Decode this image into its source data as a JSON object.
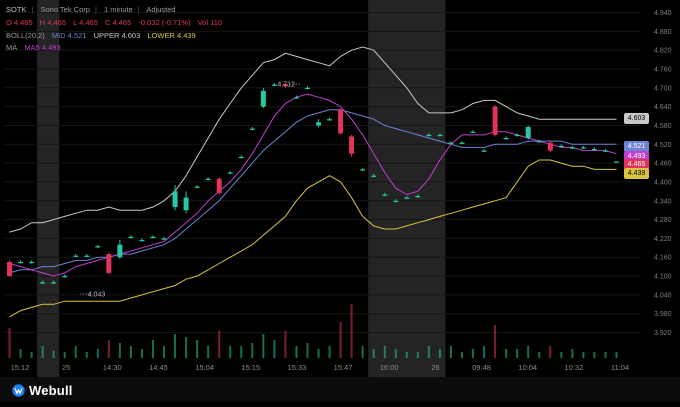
{
  "header": {
    "ticker": "SOTK",
    "company": "Sono Tek Corp",
    "interval": "1 minute",
    "adjustment": "Adjusted",
    "ohlc": {
      "open": "O 4.465",
      "high": "H 4.465",
      "low": "L 4.465",
      "close": "C 4.465",
      "change": "-0.032 (-0.71%)",
      "volume": "Vol 110"
    },
    "boll": {
      "label": "BOLL(20,2)",
      "mid": "MID 4.521",
      "upper": "UPPER 4.603",
      "lower": "LOWER 4.439"
    },
    "ma": {
      "label": "MA",
      "ma5": "MA5 4.493"
    }
  },
  "price_tags": {
    "upper": "4.603",
    "mid": "4.521",
    "ma5": "4.493",
    "close": "4.465",
    "lower": "4.439"
  },
  "colors": {
    "up": "#26c9a4",
    "down": "#e1345a",
    "upper_band": "#c8c8c8",
    "mid_band": "#6d83d6",
    "lower_band": "#d9c53f",
    "ma5": "#c03ed0",
    "session_shade": "#2a2a2a",
    "background": "#000000"
  },
  "footer": {
    "brand": "Webull"
  },
  "chart_data": {
    "type": "candlestick",
    "x_tick_labels": [
      "15:12",
      "25",
      "14:30",
      "14:45",
      "15:04",
      "15:15",
      "15:33",
      "15:47",
      "16:00",
      "26",
      "09:48",
      "10:04",
      "10:32",
      "11:04"
    ],
    "y_ticks": [
      3.92,
      3.98,
      4.04,
      4.1,
      4.16,
      4.22,
      4.28,
      4.34,
      4.4,
      4.46,
      4.52,
      4.58,
      4.64,
      4.7,
      4.76,
      4.82,
      4.88,
      4.94
    ],
    "ylim": [
      3.893,
      4.948
    ],
    "annotations": [
      {
        "text": "4.712",
        "price": 4.712,
        "bar": 25
      },
      {
        "text": "4.043",
        "price": 4.043,
        "bar": 6
      }
    ],
    "shaded_sessions_bars": [
      [
        3,
        4
      ],
      [
        33,
        39
      ]
    ],
    "candles": [
      {
        "o": 4.145,
        "h": 4.15,
        "l": 4.098,
        "c": 4.1,
        "v": 0.5
      },
      {
        "o": 4.145,
        "h": 4.15,
        "l": 4.14,
        "c": 4.145,
        "v": 0.15
      },
      {
        "o": 4.145,
        "h": 4.15,
        "l": 4.14,
        "c": 4.145,
        "v": 0.1
      },
      {
        "o": 4.08,
        "h": 4.085,
        "l": 4.075,
        "c": 4.08,
        "v": 0.2
      },
      {
        "o": 4.08,
        "h": 4.085,
        "l": 4.075,
        "c": 4.08,
        "v": 0.12
      },
      {
        "o": 4.1,
        "h": 4.105,
        "l": 4.095,
        "c": 4.1,
        "v": 0.1
      },
      {
        "o": 4.165,
        "h": 4.17,
        "l": 4.16,
        "c": 4.165,
        "v": 0.2
      },
      {
        "o": 4.165,
        "h": 4.17,
        "l": 4.16,
        "c": 4.165,
        "v": 0.1
      },
      {
        "o": 4.195,
        "h": 4.2,
        "l": 4.19,
        "c": 4.195,
        "v": 0.15
      },
      {
        "o": 4.17,
        "h": 4.175,
        "l": 4.105,
        "c": 4.11,
        "v": 0.3
      },
      {
        "o": 4.16,
        "h": 4.215,
        "l": 4.155,
        "c": 4.2,
        "v": 0.25
      },
      {
        "o": 4.225,
        "h": 4.23,
        "l": 4.22,
        "c": 4.225,
        "v": 0.2
      },
      {
        "o": 4.215,
        "h": 4.22,
        "l": 4.21,
        "c": 4.215,
        "v": 0.15
      },
      {
        "o": 4.225,
        "h": 4.23,
        "l": 4.22,
        "c": 4.225,
        "v": 0.3
      },
      {
        "o": 4.22,
        "h": 4.225,
        "l": 4.215,
        "c": 4.22,
        "v": 0.2
      },
      {
        "o": 4.32,
        "h": 4.39,
        "l": 4.31,
        "c": 4.37,
        "v": 0.4
      },
      {
        "o": 4.31,
        "h": 4.37,
        "l": 4.3,
        "c": 4.35,
        "v": 0.35
      },
      {
        "o": 4.385,
        "h": 4.39,
        "l": 4.38,
        "c": 4.385,
        "v": 0.3
      },
      {
        "o": 4.41,
        "h": 4.415,
        "l": 4.405,
        "c": 4.41,
        "v": 0.2
      },
      {
        "o": 4.41,
        "h": 4.415,
        "l": 4.36,
        "c": 4.365,
        "v": 0.45
      },
      {
        "o": 4.43,
        "h": 4.435,
        "l": 4.425,
        "c": 4.43,
        "v": 0.2
      },
      {
        "o": 4.48,
        "h": 4.485,
        "l": 4.475,
        "c": 4.48,
        "v": 0.2
      },
      {
        "o": 4.57,
        "h": 4.575,
        "l": 4.565,
        "c": 4.57,
        "v": 0.25
      },
      {
        "o": 4.64,
        "h": 4.7,
        "l": 4.635,
        "c": 4.69,
        "v": 0.4
      },
      {
        "o": 4.71,
        "h": 4.715,
        "l": 4.705,
        "c": 4.71,
        "v": 0.3
      },
      {
        "o": 4.712,
        "h": 4.712,
        "l": 4.7,
        "c": 4.705,
        "v": 0.45
      },
      {
        "o": 4.67,
        "h": 4.675,
        "l": 4.665,
        "c": 4.67,
        "v": 0.2
      },
      {
        "o": 4.7,
        "h": 4.705,
        "l": 4.695,
        "c": 4.7,
        "v": 0.25
      },
      {
        "o": 4.58,
        "h": 4.6,
        "l": 4.575,
        "c": 4.59,
        "v": 0.15
      },
      {
        "o": 4.6,
        "h": 4.605,
        "l": 4.595,
        "c": 4.6,
        "v": 0.2
      },
      {
        "o": 4.63,
        "h": 4.635,
        "l": 4.55,
        "c": 4.555,
        "v": 0.6
      },
      {
        "o": 4.545,
        "h": 4.55,
        "l": 4.48,
        "c": 4.49,
        "v": 0.9
      },
      {
        "o": 4.44,
        "h": 4.445,
        "l": 4.435,
        "c": 4.44,
        "v": 0.2
      },
      {
        "o": 4.42,
        "h": 4.425,
        "l": 4.415,
        "c": 4.42,
        "v": 0.15
      },
      {
        "o": 4.36,
        "h": 4.365,
        "l": 4.355,
        "c": 4.36,
        "v": 0.2
      },
      {
        "o": 4.34,
        "h": 4.345,
        "l": 4.335,
        "c": 4.34,
        "v": 0.15
      },
      {
        "o": 4.35,
        "h": 4.355,
        "l": 4.345,
        "c": 4.35,
        "v": 0.1
      },
      {
        "o": 4.355,
        "h": 4.36,
        "l": 4.35,
        "c": 4.355,
        "v": 0.1
      },
      {
        "o": 4.55,
        "h": 4.555,
        "l": 4.545,
        "c": 4.55,
        "v": 0.2
      },
      {
        "o": 4.55,
        "h": 4.555,
        "l": 4.545,
        "c": 4.55,
        "v": 0.15
      },
      {
        "o": 4.525,
        "h": 4.53,
        "l": 4.52,
        "c": 4.525,
        "v": 0.2
      },
      {
        "o": 4.525,
        "h": 4.53,
        "l": 4.52,
        "c": 4.525,
        "v": 0.1
      },
      {
        "o": 4.56,
        "h": 4.565,
        "l": 4.555,
        "c": 4.56,
        "v": 0.15
      },
      {
        "o": 4.5,
        "h": 4.505,
        "l": 4.495,
        "c": 4.5,
        "v": 0.2
      },
      {
        "o": 4.64,
        "h": 4.645,
        "l": 4.545,
        "c": 4.55,
        "v": 0.55
      },
      {
        "o": 4.54,
        "h": 4.545,
        "l": 4.535,
        "c": 4.54,
        "v": 0.15
      },
      {
        "o": 4.55,
        "h": 4.555,
        "l": 4.545,
        "c": 4.55,
        "v": 0.15
      },
      {
        "o": 4.54,
        "h": 4.58,
        "l": 4.535,
        "c": 4.575,
        "v": 0.2
      },
      {
        "o": 4.53,
        "h": 4.535,
        "l": 4.525,
        "c": 4.53,
        "v": 0.1
      },
      {
        "o": 4.525,
        "h": 4.53,
        "l": 4.495,
        "c": 4.5,
        "v": 0.2
      },
      {
        "o": 4.515,
        "h": 4.52,
        "l": 4.51,
        "c": 4.515,
        "v": 0.1
      },
      {
        "o": 4.51,
        "h": 4.515,
        "l": 4.505,
        "c": 4.51,
        "v": 0.15
      },
      {
        "o": 4.51,
        "h": 4.515,
        "l": 4.505,
        "c": 4.51,
        "v": 0.1
      },
      {
        "o": 4.505,
        "h": 4.51,
        "l": 4.5,
        "c": 4.505,
        "v": 0.1
      },
      {
        "o": 4.5,
        "h": 4.505,
        "l": 4.495,
        "c": 4.5,
        "v": 0.1
      },
      {
        "o": 4.465,
        "h": 4.465,
        "l": 4.465,
        "c": 4.465,
        "v": 0.1
      }
    ],
    "bollinger_upper": [
      4.24,
      4.25,
      4.27,
      4.27,
      4.28,
      4.29,
      4.3,
      4.31,
      4.31,
      4.32,
      4.31,
      4.31,
      4.31,
      4.32,
      4.34,
      4.37,
      4.42,
      4.48,
      4.54,
      4.6,
      4.65,
      4.7,
      4.74,
      4.78,
      4.79,
      4.81,
      4.8,
      4.79,
      4.78,
      4.77,
      4.8,
      4.82,
      4.83,
      4.82,
      4.78,
      4.74,
      4.7,
      4.65,
      4.62,
      4.62,
      4.62,
      4.63,
      4.65,
      4.66,
      4.66,
      4.64,
      4.62,
      4.61,
      4.6,
      4.6,
      4.6,
      4.6,
      4.6,
      4.6,
      4.6,
      4.6
    ],
    "bollinger_mid": [
      4.11,
      4.12,
      4.12,
      4.13,
      4.13,
      4.14,
      4.15,
      4.15,
      4.16,
      4.16,
      4.17,
      4.17,
      4.18,
      4.19,
      4.2,
      4.22,
      4.25,
      4.28,
      4.31,
      4.34,
      4.38,
      4.42,
      4.46,
      4.5,
      4.53,
      4.56,
      4.59,
      4.61,
      4.62,
      4.63,
      4.63,
      4.62,
      4.61,
      4.6,
      4.58,
      4.57,
      4.56,
      4.55,
      4.54,
      4.53,
      4.52,
      4.51,
      4.51,
      4.51,
      4.52,
      4.52,
      4.52,
      4.53,
      4.53,
      4.53,
      4.53,
      4.52,
      4.52,
      4.52,
      4.52,
      4.52
    ],
    "bollinger_lower": [
      3.97,
      3.99,
      4.0,
      4.01,
      4.01,
      4.02,
      4.02,
      4.02,
      4.02,
      4.02,
      4.02,
      4.03,
      4.04,
      4.05,
      4.06,
      4.07,
      4.09,
      4.1,
      4.12,
      4.14,
      4.16,
      4.18,
      4.2,
      4.23,
      4.26,
      4.29,
      4.34,
      4.38,
      4.4,
      4.42,
      4.4,
      4.35,
      4.29,
      4.26,
      4.25,
      4.25,
      4.26,
      4.27,
      4.28,
      4.29,
      4.3,
      4.31,
      4.32,
      4.33,
      4.34,
      4.35,
      4.4,
      4.45,
      4.47,
      4.47,
      4.46,
      4.45,
      4.45,
      4.44,
      4.44,
      4.44
    ],
    "ma5": [
      4.14,
      4.13,
      4.12,
      4.11,
      4.1,
      4.11,
      4.13,
      4.14,
      4.15,
      4.16,
      4.17,
      4.18,
      4.19,
      4.2,
      4.21,
      4.24,
      4.27,
      4.3,
      4.34,
      4.37,
      4.4,
      4.44,
      4.49,
      4.55,
      4.61,
      4.65,
      4.67,
      4.68,
      4.67,
      4.66,
      4.64,
      4.6,
      4.55,
      4.49,
      4.43,
      4.38,
      4.36,
      4.37,
      4.41,
      4.47,
      4.52,
      4.55,
      4.55,
      4.55,
      4.56,
      4.56,
      4.55,
      4.54,
      4.53,
      4.52,
      4.51,
      4.51,
      4.5,
      4.5,
      4.5,
      4.49
    ]
  }
}
